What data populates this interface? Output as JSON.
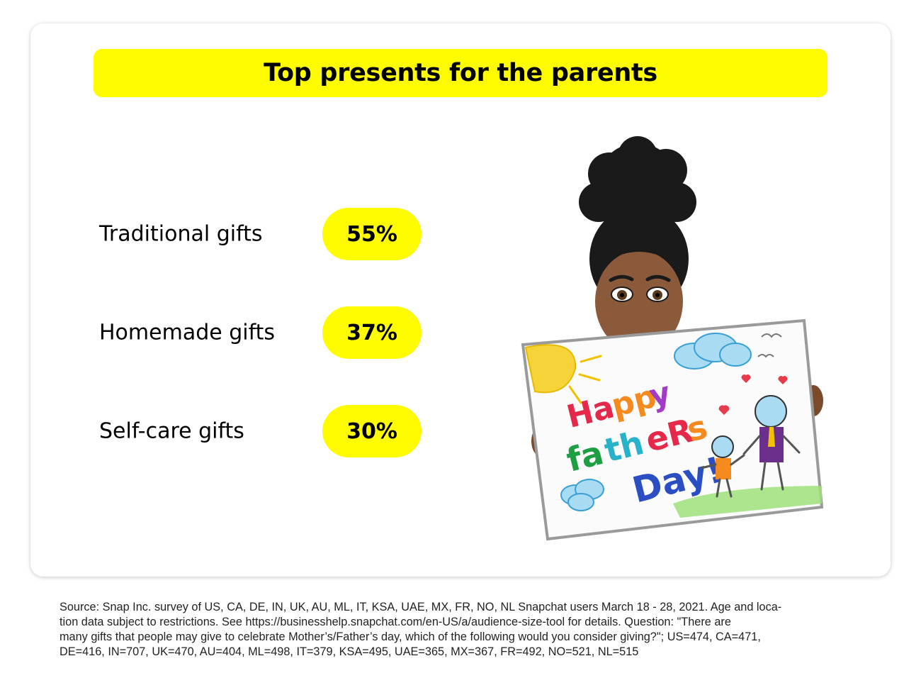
{
  "title": "Top presents for the parents",
  "items": [
    {
      "label": "Traditional gifts",
      "value": "55%"
    },
    {
      "label": "Homemade gifts",
      "value": "37%"
    },
    {
      "label": "Self-care gifts",
      "value": "30%"
    }
  ],
  "illustration": {
    "icon": "bitmoji-holding-card-icon",
    "card_text": [
      "Happy",
      "fatheRs",
      "Day!"
    ]
  },
  "source_lines": [
    "Source: Snap Inc. survey of US, CA, DE, IN, UK, AU, ML, IT, KSA, UAE, MX, FR, NO, NL Snapchat users March 18 - 28, 2021. Age and loca-",
    "tion data subject to restrictions. See https://businesshelp.snapchat.com/en-US/a/audience-size-tool for details. Question: \"There are",
    "many gifts that people may give to celebrate Mother’s/Father’s day, which of the following would you consider giving?\"; US=474, CA=471,",
    "DE=416, IN=707, UK=470, AU=404, ML=498, IT=379, KSA=495, UAE=365, MX=367, FR=492, NO=521, NL=515"
  ],
  "colors": {
    "accent": "#FFFC00",
    "text": "#000000",
    "card": "#FFFFFF"
  }
}
